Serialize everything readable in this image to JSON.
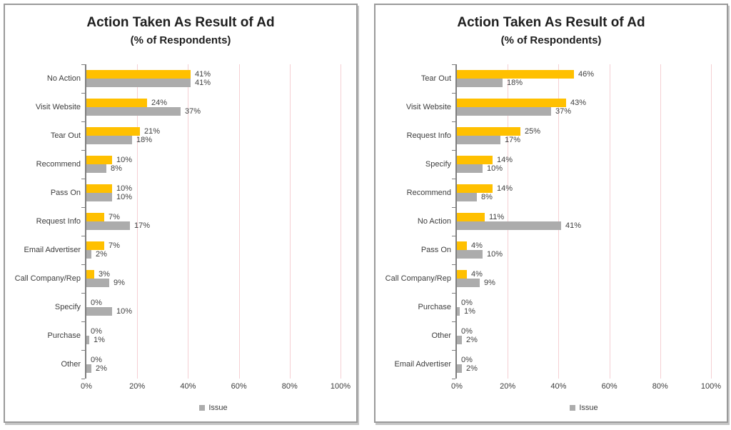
{
  "colors": {
    "bar_primary": "#FFC000",
    "bar_issue": "#ACACAC",
    "gridline": "#F5CFD3",
    "axis": "#7F7F7F",
    "panel_border": "#9A9A9A",
    "label_text": "#3D3D3D",
    "title_text": "#1F1F1F"
  },
  "chart_data": [
    {
      "type": "bar",
      "orientation": "horizontal",
      "title": "Action Taken As Result of Ad",
      "subtitle": "(% of Respondents)",
      "categories": [
        "No Action",
        "Visit Website",
        "Tear Out",
        "Recommend",
        "Pass On",
        "Request Info",
        "Email Advertiser",
        "Call Company/Rep",
        "Specify",
        "Purchase",
        "Other"
      ],
      "series": [
        {
          "name": "",
          "color": "#FFC000",
          "values": [
            41,
            24,
            21,
            10,
            10,
            7,
            7,
            3,
            0,
            0,
            0
          ]
        },
        {
          "name": "Issue",
          "color": "#ACACAC",
          "values": [
            41,
            37,
            18,
            8,
            10,
            17,
            2,
            9,
            10,
            1,
            2
          ]
        }
      ],
      "data_label_format": "percent",
      "xlim": [
        0,
        100
      ],
      "xticks": [
        "0%",
        "20%",
        "40%",
        "60%",
        "80%",
        "100%"
      ],
      "gridlines": {
        "vertical": true,
        "color": "#F5CFD3"
      },
      "legend": {
        "position": "bottom",
        "entries": [
          "Issue"
        ]
      }
    },
    {
      "type": "bar",
      "orientation": "horizontal",
      "title": "Action Taken As Result of Ad",
      "subtitle": "(% of Respondents)",
      "categories": [
        "Tear Out",
        "Visit Website",
        "Request Info",
        "Specify",
        "Recommend",
        "No Action",
        "Pass On",
        "Call Company/Rep",
        "Purchase",
        "Other",
        "Email Advertiser"
      ],
      "series": [
        {
          "name": "",
          "color": "#FFC000",
          "values": [
            46,
            43,
            25,
            14,
            14,
            11,
            4,
            4,
            0,
            0,
            0
          ]
        },
        {
          "name": "Issue",
          "color": "#ACACAC",
          "values": [
            18,
            37,
            17,
            10,
            8,
            41,
            10,
            9,
            1,
            2,
            2
          ]
        }
      ],
      "data_label_format": "percent",
      "xlim": [
        0,
        100
      ],
      "xticks": [
        "0%",
        "20%",
        "40%",
        "60%",
        "80%",
        "100%"
      ],
      "gridlines": {
        "vertical": true,
        "color": "#F5CFD3"
      },
      "legend": {
        "position": "bottom",
        "entries": [
          "Issue"
        ]
      }
    }
  ]
}
